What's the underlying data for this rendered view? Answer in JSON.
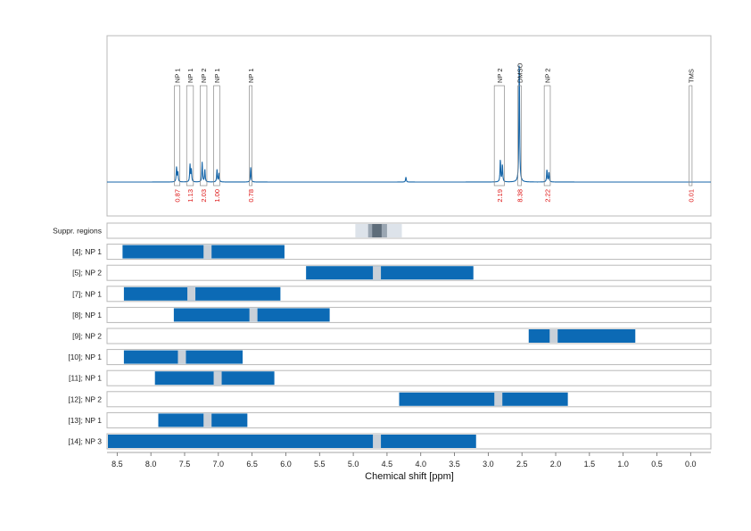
{
  "chart_data": {
    "type": "line",
    "xlabel": "Chemical shift [ppm]",
    "xlim": [
      8.65,
      -0.3
    ],
    "x_ticks": [
      "8.5",
      "8.0",
      "7.5",
      "7.0",
      "6.5",
      "6.0",
      "5.5",
      "5.0",
      "4.5",
      "4.0",
      "3.5",
      "3.0",
      "2.5",
      "2.0",
      "1.5",
      "1.0",
      "0.5",
      "0.0"
    ],
    "gridlines": "vertical dotted",
    "spectrum_peaks": [
      {
        "ppm": 7.62,
        "height": 0.12
      },
      {
        "ppm": 7.6,
        "height": 0.08
      },
      {
        "ppm": 7.42,
        "height": 0.14
      },
      {
        "ppm": 7.4,
        "height": 0.1
      },
      {
        "ppm": 7.24,
        "height": 0.16
      },
      {
        "ppm": 7.2,
        "height": 0.1
      },
      {
        "ppm": 7.02,
        "height": 0.1
      },
      {
        "ppm": 6.99,
        "height": 0.07
      },
      {
        "ppm": 6.52,
        "height": 0.12
      },
      {
        "ppm": 4.22,
        "height": 0.04
      },
      {
        "ppm": 2.82,
        "height": 0.18
      },
      {
        "ppm": 2.79,
        "height": 0.14
      },
      {
        "ppm": 2.54,
        "height": 1.0
      },
      {
        "ppm": 2.13,
        "height": 0.1
      },
      {
        "ppm": 2.1,
        "height": 0.08
      }
    ],
    "peak_annotations": [
      {
        "label": "NP 1",
        "from": 7.65,
        "to": 7.57,
        "integral": "0.87"
      },
      {
        "label": "NP 1",
        "from": 7.47,
        "to": 7.37,
        "integral": "1.13"
      },
      {
        "label": "NP 2",
        "from": 7.27,
        "to": 7.17,
        "integral": "2.03"
      },
      {
        "label": "NP 1",
        "from": 7.07,
        "to": 6.98,
        "integral": "1.00"
      },
      {
        "label": "NP 1",
        "from": 6.54,
        "to": 6.5,
        "integral": "0.78"
      },
      {
        "label": "NP 2",
        "from": 2.91,
        "to": 2.76,
        "integral": "2.19"
      },
      {
        "label": "DMSO",
        "from": 2.56,
        "to": 2.51,
        "integral": "8.38"
      },
      {
        "label": "NP 2",
        "from": 2.17,
        "to": 2.08,
        "integral": "2.22"
      },
      {
        "label": "TMS",
        "from": 0.01,
        "to": -0.01,
        "integral": "0.01"
      }
    ],
    "suppressed_regions": {
      "label": "Suppr. regions",
      "outer": [
        4.97,
        4.28
      ],
      "mid": [
        4.78,
        4.5
      ],
      "inner": [
        4.72,
        4.58
      ]
    },
    "range_rows": [
      {
        "label": "[4]; NP 1",
        "from": 8.42,
        "to": 6.02,
        "marker": 7.16
      },
      {
        "label": "[5]; NP 2",
        "from": 5.7,
        "to": 3.22,
        "marker": 4.65
      },
      {
        "label": "[7]; NP 1",
        "from": 8.4,
        "to": 6.08,
        "marker": 7.4
      },
      {
        "label": "[8]; NP 1",
        "from": 7.66,
        "to": 5.35,
        "marker": 6.48
      },
      {
        "label": "[9]; NP 2",
        "from": 2.4,
        "to": 0.82,
        "marker": 2.03
      },
      {
        "label": "[10]; NP 1",
        "from": 8.4,
        "to": 6.64,
        "marker": 7.54
      },
      {
        "label": "[11]; NP 1",
        "from": 7.94,
        "to": 6.17,
        "marker": 7.01
      },
      {
        "label": "[12]; NP 2",
        "from": 4.32,
        "to": 1.82,
        "marker": 2.85
      },
      {
        "label": "[13]; NP 1",
        "from": 7.89,
        "to": 6.57,
        "marker": 7.16
      },
      {
        "label": "[14]; NP 3",
        "from": 8.65,
        "to": 3.18,
        "marker": 4.65
      }
    ],
    "colors": {
      "bar": "#0c6ab5",
      "marker": "#c9d0d8",
      "spectrum": "#1565a8",
      "integral": "#d11111",
      "grid": "#c8c8c8"
    }
  }
}
